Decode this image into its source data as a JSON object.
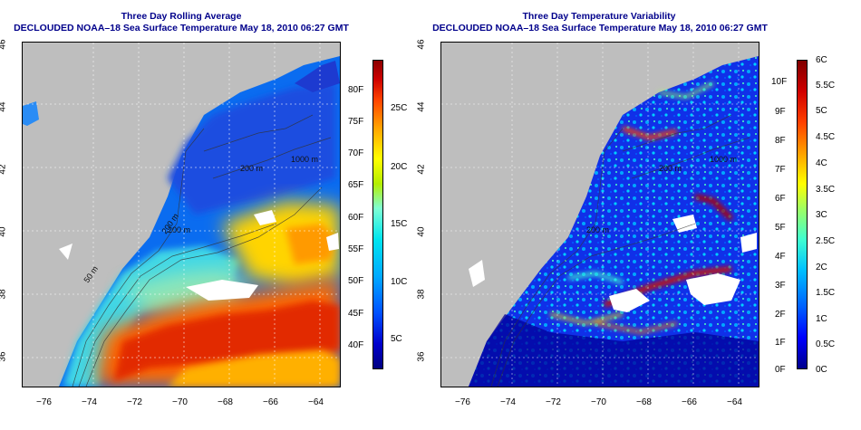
{
  "panels": {
    "left": {
      "title": "Three Day Rolling Average",
      "subtitle": "DECLOUDED NOAA–18 Sea Surface Temperature May 18, 2010 06:27 GMT",
      "colorbar_F": [
        "80F",
        "75F",
        "70F",
        "65F",
        "60F",
        "55F",
        "50F",
        "45F",
        "40F"
      ],
      "colorbar_C": [
        "25C",
        "20C",
        "15C",
        "10C",
        "5C"
      ]
    },
    "right": {
      "title": "Three Day Temperature Variability",
      "subtitle": "DECLOUDED NOAA–18 Sea Surface Temperature May 18, 2010 06:27 GMT",
      "colorbar_F": [
        "10F",
        "9F",
        "8F",
        "7F",
        "6F",
        "5F",
        "4F",
        "3F",
        "2F",
        "1F",
        "0F"
      ],
      "colorbar_C": [
        "6C",
        "5.5C",
        "5C",
        "4.5C",
        "4C",
        "3.5C",
        "3C",
        "2.5C",
        "2C",
        "1.5C",
        "1C",
        "0.5C",
        "0C"
      ]
    }
  },
  "axes": {
    "x_ticks": [
      "−76",
      "−74",
      "−72",
      "−70",
      "−68",
      "−66",
      "−64"
    ],
    "y_ticks": [
      "46",
      "44",
      "42",
      "40",
      "38",
      "36"
    ]
  },
  "contour_labels": [
    "200 m",
    "200 m",
    "1000 m",
    "50 m",
    "200 m"
  ],
  "colors": {
    "land": "#bebebe",
    "title": "#00008b",
    "sst_scale": [
      "#000080",
      "#0000cd",
      "#0050ff",
      "#00aaff",
      "#00e5ee",
      "#7fffd4",
      "#b4ee00",
      "#ffff00",
      "#ffa500",
      "#ff4500",
      "#cd0000",
      "#8b0000"
    ],
    "var_scale": [
      "#00008b",
      "#0000ff",
      "#0060ff",
      "#00c0ff",
      "#40ffd0",
      "#a0ff60",
      "#ffff00",
      "#ffa000",
      "#ff4000",
      "#d00000",
      "#800000"
    ]
  }
}
